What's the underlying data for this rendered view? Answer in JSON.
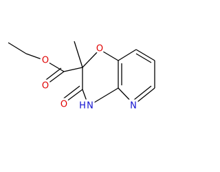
{
  "atom_labels": [
    "O",
    "O",
    "O",
    "O",
    "H",
    "N",
    "N"
  ]
}
